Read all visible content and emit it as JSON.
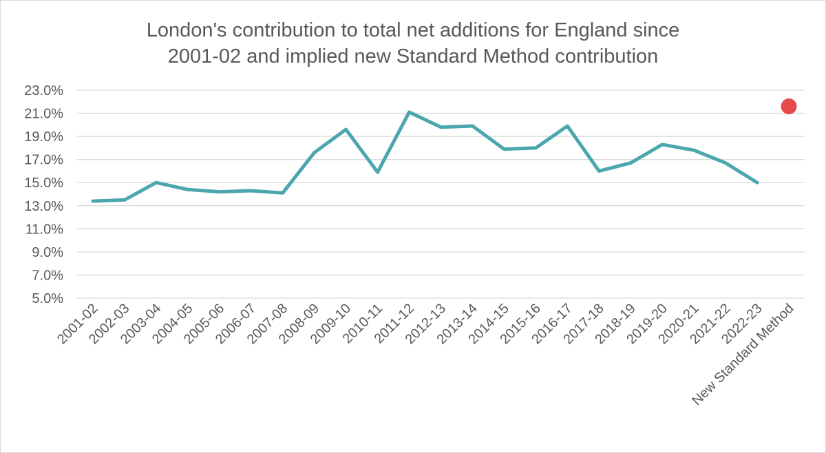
{
  "chart_data": {
    "type": "line",
    "title_lines": [
      "London's contribution to total net additions for England since",
      "2001-02 and implied new Standard Method contribution"
    ],
    "categories": [
      "2001-02",
      "2002-03",
      "2003-04",
      "2004-05",
      "2005-06",
      "2006-07",
      "2007-08",
      "2008-09",
      "2009-10",
      "2010-11",
      "2011-12",
      "2012-13",
      "2013-14",
      "2014-15",
      "2015-16",
      "2016-17",
      "2017-18",
      "2018-19",
      "2019-20",
      "2020-21",
      "2021-22",
      "2022-23",
      "New Standard Method"
    ],
    "yticks": [
      "5.0%",
      "7.0%",
      "9.0%",
      "11.0%",
      "13.0%",
      "15.0%",
      "17.0%",
      "19.0%",
      "21.0%",
      "23.0%"
    ],
    "ylim": [
      5,
      23
    ],
    "series": [
      {
        "kind": "line",
        "color": "#4ba6ae",
        "values": [
          13.4,
          13.5,
          15.0,
          14.4,
          14.2,
          14.3,
          14.1,
          17.6,
          19.6,
          15.9,
          21.1,
          19.8,
          19.9,
          17.9,
          18.0,
          19.9,
          16.0,
          16.7,
          18.3,
          17.8,
          16.7,
          15.0,
          null
        ]
      },
      {
        "kind": "marker",
        "color": "#e8494b",
        "values": [
          null,
          null,
          null,
          null,
          null,
          null,
          null,
          null,
          null,
          null,
          null,
          null,
          null,
          null,
          null,
          null,
          null,
          null,
          null,
          null,
          null,
          null,
          21.6
        ]
      }
    ],
    "grid": true,
    "legend": "none"
  }
}
